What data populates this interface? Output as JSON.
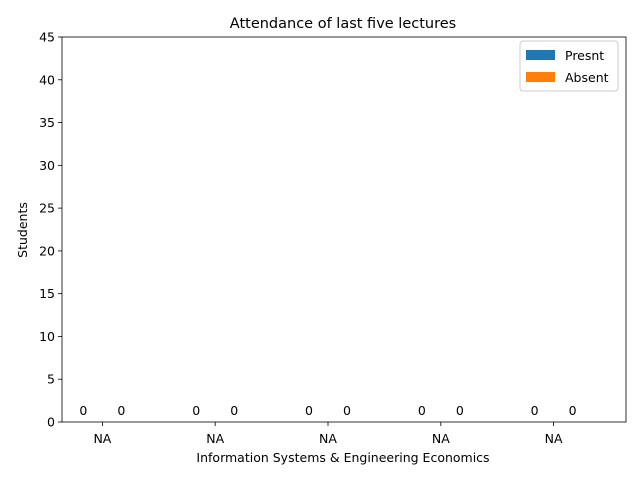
{
  "chart_data": {
    "type": "bar",
    "title": "Attendance of last five lectures",
    "xlabel": "Information Systems & Engineering Economics",
    "ylabel": "Students",
    "categories": [
      "NA",
      "NA",
      "NA",
      "NA",
      "NA"
    ],
    "series": [
      {
        "name": "Presnt",
        "values": [
          0,
          0,
          0,
          0,
          0
        ],
        "color": "#1f77b4"
      },
      {
        "name": "Absent",
        "values": [
          0,
          0,
          0,
          0,
          0
        ],
        "color": "#ff7f0e"
      }
    ],
    "ylim": [
      0,
      45
    ],
    "yticks": [
      0,
      5,
      10,
      15,
      20,
      25,
      30,
      35,
      40,
      45
    ],
    "grid": false,
    "legend_position": "top-right",
    "data_labels": true
  }
}
